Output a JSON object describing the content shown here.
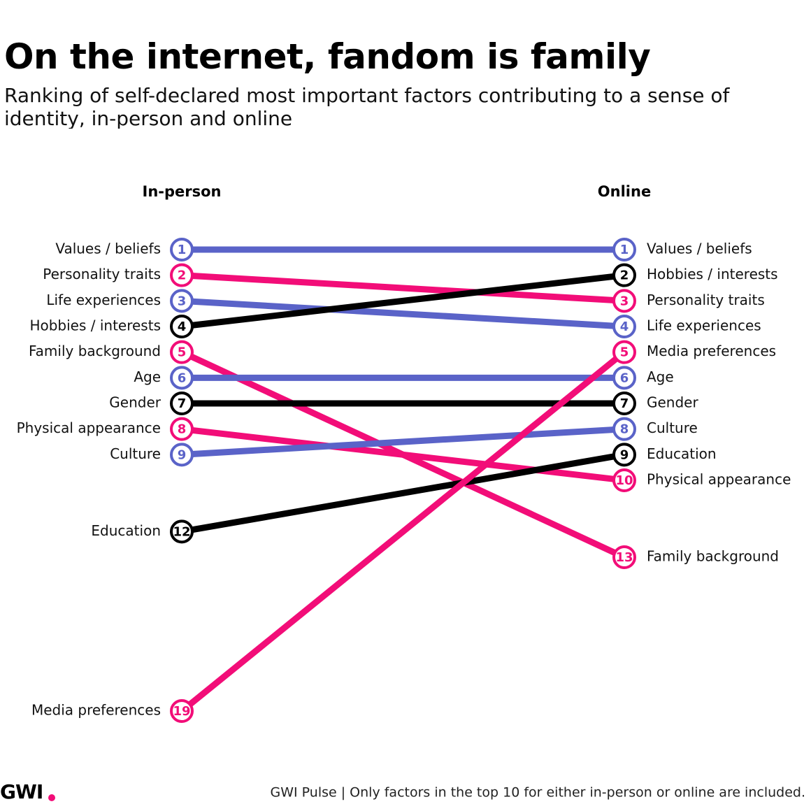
{
  "chart_data": {
    "type": "slope",
    "title": "On the internet, fandom is family",
    "subtitle": "Ranking of self-declared most important factors contributing to a sense of identity, in-person and online",
    "categories": [
      "In-person",
      "Online"
    ],
    "ylim": [
      1,
      19
    ],
    "series": [
      {
        "name": "Values / beliefs",
        "color": "#5a63c8",
        "values": [
          1,
          1
        ]
      },
      {
        "name": "Personality traits",
        "color": "#f20d78",
        "values": [
          2,
          3
        ]
      },
      {
        "name": "Life experiences",
        "color": "#5a63c8",
        "values": [
          3,
          4
        ]
      },
      {
        "name": "Hobbies / interests",
        "color": "#000000",
        "values": [
          4,
          2
        ]
      },
      {
        "name": "Family background",
        "color": "#f20d78",
        "values": [
          5,
          13
        ]
      },
      {
        "name": "Age",
        "color": "#5a63c8",
        "values": [
          6,
          6
        ]
      },
      {
        "name": "Gender",
        "color": "#000000",
        "values": [
          7,
          7
        ]
      },
      {
        "name": "Physical appearance",
        "color": "#f20d78",
        "values": [
          8,
          10
        ]
      },
      {
        "name": "Culture",
        "color": "#5a63c8",
        "values": [
          9,
          8
        ]
      },
      {
        "name": "Education",
        "color": "#000000",
        "values": [
          12,
          9
        ]
      },
      {
        "name": "Media preferences",
        "color": "#f20d78",
        "values": [
          19,
          5
        ]
      }
    ],
    "logo": "GWI",
    "source": "GWI Pulse | Only factors in the top 10 for either in-person or online are included."
  }
}
